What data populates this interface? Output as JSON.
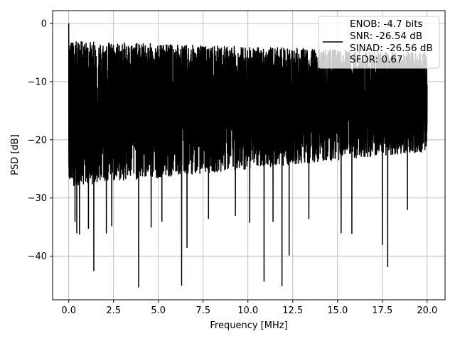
{
  "chart_data": {
    "type": "line",
    "title": "",
    "xlabel": "Frequency [MHz]",
    "ylabel": "PSD [dB]",
    "xlim": [
      -0.9,
      21.0
    ],
    "ylim": [
      -47.5,
      2.2
    ],
    "xticks": [
      0.0,
      2.5,
      5.0,
      7.5,
      10.0,
      12.5,
      15.0,
      17.5,
      20.0
    ],
    "xtick_labels": [
      "0.0",
      "2.5",
      "5.0",
      "7.5",
      "10.0",
      "12.5",
      "15.0",
      "17.5",
      "20.0"
    ],
    "yticks": [
      0,
      -10,
      -20,
      -30,
      -40
    ],
    "ytick_labels": [
      "0",
      "−10",
      "−20",
      "−30",
      "−40"
    ],
    "grid": true,
    "legend": {
      "placement": "top-right",
      "entries": [
        "ENOB: -4.7 bits",
        "SNR: -26.54 dB",
        "SINAD: -26.56 dB",
        "SFDR: 0.67"
      ]
    },
    "series": [
      {
        "color": "#000000",
        "x_range": [
          0.0,
          20.0
        ],
        "peak": [
          0.0,
          0.0
        ],
        "upper_envelope_db": [
          -3,
          -5
        ],
        "mean_db": -15,
        "lower_envelope_db": [
          -28,
          -22
        ],
        "deep_notches": [
          {
            "x": 0.35,
            "y": -34.0
          },
          {
            "x": 0.45,
            "y": -36.0
          },
          {
            "x": 0.6,
            "y": -36.2
          },
          {
            "x": 1.1,
            "y": -35.2
          },
          {
            "x": 1.4,
            "y": -42.5
          },
          {
            "x": 2.1,
            "y": -36.0
          },
          {
            "x": 2.4,
            "y": -34.8
          },
          {
            "x": 3.9,
            "y": -45.3
          },
          {
            "x": 4.6,
            "y": -35.0
          },
          {
            "x": 5.2,
            "y": -34.0
          },
          {
            "x": 6.3,
            "y": -45.0
          },
          {
            "x": 6.6,
            "y": -38.5
          },
          {
            "x": 7.8,
            "y": -33.5
          },
          {
            "x": 9.3,
            "y": -33.0
          },
          {
            "x": 10.1,
            "y": -34.2
          },
          {
            "x": 10.9,
            "y": -44.3
          },
          {
            "x": 11.4,
            "y": -34.0
          },
          {
            "x": 11.9,
            "y": -45.1
          },
          {
            "x": 12.3,
            "y": -39.8
          },
          {
            "x": 13.4,
            "y": -33.5
          },
          {
            "x": 15.2,
            "y": -36.0
          },
          {
            "x": 15.8,
            "y": -36.1
          },
          {
            "x": 17.5,
            "y": -38.0
          },
          {
            "x": 17.8,
            "y": -41.8
          },
          {
            "x": 18.9,
            "y": -32.0
          }
        ]
      }
    ]
  }
}
